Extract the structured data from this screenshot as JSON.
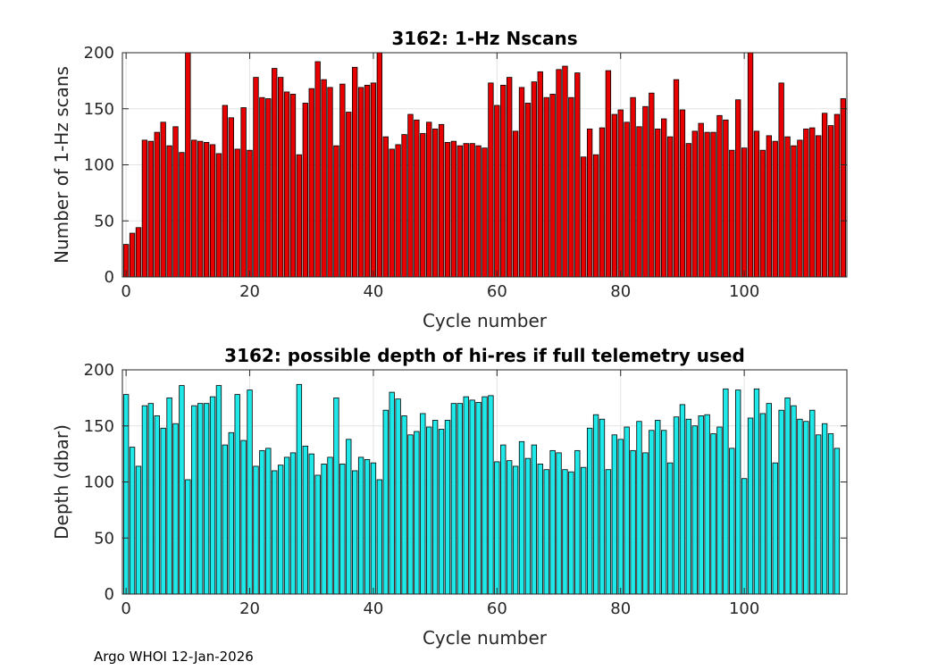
{
  "footer_text": "Argo WHOI 12-Jan-2026",
  "chart_data": [
    {
      "type": "bar",
      "title": "3162: 1-Hz Nscans",
      "xlabel": "Cycle number",
      "ylabel": "Number of 1-Hz scans",
      "xlim": [
        -0.6,
        116.6
      ],
      "ylim": [
        0,
        200
      ],
      "xticks": [
        0,
        20,
        40,
        60,
        80,
        100
      ],
      "yticks": [
        0,
        50,
        100,
        150,
        200
      ],
      "grid": true,
      "bar_color": "#e80000",
      "x": [
        0,
        1,
        2,
        3,
        4,
        5,
        6,
        7,
        8,
        9,
        10,
        11,
        12,
        13,
        14,
        15,
        16,
        17,
        18,
        19,
        20,
        21,
        22,
        23,
        24,
        25,
        26,
        27,
        28,
        29,
        30,
        31,
        32,
        33,
        34,
        35,
        36,
        37,
        38,
        39,
        40,
        41,
        42,
        43,
        44,
        45,
        46,
        47,
        48,
        49,
        50,
        51,
        52,
        53,
        54,
        55,
        56,
        57,
        58,
        59,
        60,
        61,
        62,
        63,
        64,
        65,
        66,
        67,
        68,
        69,
        70,
        71,
        72,
        73,
        74,
        75,
        76,
        77,
        78,
        79,
        80,
        81,
        82,
        83,
        84,
        85,
        86,
        87,
        88,
        89,
        90,
        91,
        92,
        93,
        94,
        95,
        96,
        97,
        98,
        99,
        100,
        101,
        102,
        103,
        104,
        105,
        106,
        107,
        108,
        109,
        110,
        111,
        112,
        113,
        114,
        115,
        116
      ],
      "values": [
        29,
        39,
        44,
        122,
        121,
        129,
        138,
        117,
        134,
        111,
        200,
        122,
        121,
        120,
        118,
        110,
        153,
        142,
        114,
        151,
        113,
        178,
        160,
        159,
        186,
        178,
        165,
        163,
        109,
        155,
        168,
        192,
        176,
        169,
        117,
        172,
        147,
        187,
        169,
        171,
        173,
        200,
        125,
        114,
        118,
        127,
        145,
        140,
        128,
        138,
        132,
        136,
        120,
        121,
        117,
        119,
        119,
        117,
        115,
        173,
        153,
        171,
        178,
        130,
        169,
        155,
        174,
        183,
        160,
        163,
        185,
        188,
        160,
        182,
        107,
        132,
        109,
        133,
        184,
        145,
        149,
        138,
        160,
        134,
        152,
        164,
        132,
        141,
        125,
        176,
        149,
        119,
        130,
        137,
        129,
        129,
        144,
        140,
        113,
        158,
        115,
        200,
        130,
        113,
        126,
        121,
        173,
        125,
        117,
        122,
        132,
        133,
        126,
        146,
        135,
        145,
        159
      ]
    },
    {
      "type": "bar",
      "title": "3162: possible depth of hi-res if full telemetry used",
      "xlabel": "Cycle number",
      "ylabel": "Depth (dbar)",
      "xlim": [
        -0.6,
        116.6
      ],
      "ylim": [
        0,
        200
      ],
      "xticks": [
        0,
        20,
        40,
        60,
        80,
        100
      ],
      "yticks": [
        0,
        50,
        100,
        150,
        200
      ],
      "grid": true,
      "bar_color": "#1fe8e8",
      "x": [
        0,
        1,
        2,
        3,
        4,
        5,
        6,
        7,
        8,
        9,
        10,
        11,
        12,
        13,
        14,
        15,
        16,
        17,
        18,
        19,
        20,
        21,
        22,
        23,
        24,
        25,
        26,
        27,
        28,
        29,
        30,
        31,
        32,
        33,
        34,
        35,
        36,
        37,
        38,
        39,
        40,
        41,
        42,
        43,
        44,
        45,
        46,
        47,
        48,
        49,
        50,
        51,
        52,
        53,
        54,
        55,
        56,
        57,
        58,
        59,
        60,
        61,
        62,
        63,
        64,
        65,
        66,
        67,
        68,
        69,
        70,
        71,
        72,
        73,
        74,
        75,
        76,
        77,
        78,
        79,
        80,
        81,
        82,
        83,
        84,
        85,
        86,
        87,
        88,
        89,
        90,
        91,
        92,
        93,
        94,
        95,
        96,
        97,
        98,
        99,
        100,
        101,
        102,
        103,
        104,
        105,
        106,
        107,
        108,
        109,
        110,
        111,
        112,
        113,
        114,
        115,
        116
      ],
      "values": [
        178,
        131,
        114,
        168,
        170,
        159,
        148,
        175,
        152,
        186,
        102,
        168,
        170,
        170,
        176,
        186,
        133,
        144,
        178,
        137,
        182,
        114,
        128,
        130,
        110,
        115,
        122,
        126,
        187,
        132,
        125,
        106,
        116,
        122,
        175,
        116,
        138,
        110,
        122,
        120,
        117,
        102,
        164,
        180,
        174,
        159,
        142,
        145,
        161,
        149,
        155,
        147,
        155,
        170,
        170,
        176,
        173,
        171,
        176,
        177,
        118,
        133,
        119,
        114,
        136,
        121,
        133,
        116,
        111,
        128,
        126,
        111,
        109,
        128,
        113,
        148,
        160,
        156,
        111,
        142,
        138,
        149,
        128,
        154,
        126,
        146,
        155,
        146,
        117,
        158,
        169,
        156,
        150,
        159,
        160,
        143,
        149,
        183,
        130,
        182,
        103,
        157,
        183,
        161,
        170,
        117,
        164,
        175,
        168,
        156,
        154,
        164,
        142,
        152,
        143,
        130,
        0
      ]
    }
  ]
}
